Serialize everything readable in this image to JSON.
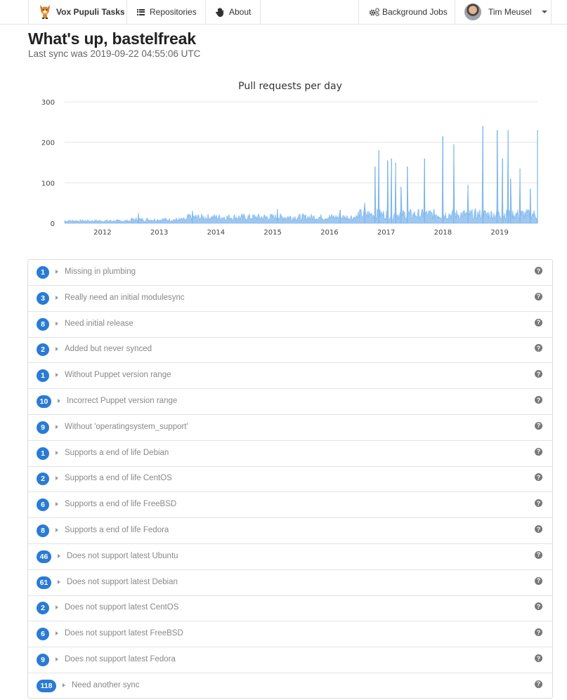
{
  "nav": {
    "brand": "Vox Pupuli Tasks",
    "repositories": "Repositories",
    "about": "About",
    "jobs": "Background Jobs",
    "user": "Tim Meusel"
  },
  "header": {
    "title": "What's up, bastelfreak",
    "last_sync": "Last sync was 2019-09-22 04:55:06 UTC"
  },
  "chart_data": {
    "type": "area",
    "title": "Pull requests per day",
    "xlabel": "",
    "ylabel": "",
    "x_ticks": [
      "2012",
      "2013",
      "2014",
      "2015",
      "2016",
      "2017",
      "2018",
      "2019"
    ],
    "y_ticks": [
      0,
      100,
      200,
      300
    ],
    "ylim": [
      0,
      300
    ],
    "xlim": [
      "2011-05",
      "2019-09"
    ],
    "grid": true,
    "color": "#7cb5ec",
    "note_daily_noise": "daily values mostly 0-40",
    "peaks": [
      {
        "x": "2012-08-20",
        "y": 25
      },
      {
        "x": "2013-08-01",
        "y": 30
      },
      {
        "x": "2015-02-01",
        "y": 35
      },
      {
        "x": "2016-03-10",
        "y": 33
      },
      {
        "x": "2016-08-15",
        "y": 50
      },
      {
        "x": "2016-10-20",
        "y": 140
      },
      {
        "x": "2016-11-15",
        "y": 180
      },
      {
        "x": "2017-01-10",
        "y": 155
      },
      {
        "x": "2017-02-05",
        "y": 160
      },
      {
        "x": "2017-03-01",
        "y": 150
      },
      {
        "x": "2017-04-05",
        "y": 90
      },
      {
        "x": "2017-05-15",
        "y": 140
      },
      {
        "x": "2017-09-05",
        "y": 160
      },
      {
        "x": "2018-01-01",
        "y": 215
      },
      {
        "x": "2018-03-10",
        "y": 195
      },
      {
        "x": "2018-06-10",
        "y": 95
      },
      {
        "x": "2018-09-15",
        "y": 240
      },
      {
        "x": "2018-12-15",
        "y": 230
      },
      {
        "x": "2019-01-20",
        "y": 160
      },
      {
        "x": "2019-02-25",
        "y": 230
      },
      {
        "x": "2019-03-10",
        "y": 110
      },
      {
        "x": "2019-05-10",
        "y": 135
      },
      {
        "x": "2019-07-15",
        "y": 85
      },
      {
        "x": "2019-09-01",
        "y": 230
      }
    ]
  },
  "checks": [
    {
      "count": "1",
      "label": "Missing in plumbing"
    },
    {
      "count": "3",
      "label": "Really need an initial modulesync"
    },
    {
      "count": "8",
      "label": "Need initial release"
    },
    {
      "count": "2",
      "label": "Added but never synced"
    },
    {
      "count": "1",
      "label": "Without Puppet version range"
    },
    {
      "count": "10",
      "label": "Incorrect Puppet version range"
    },
    {
      "count": "9",
      "label": "Without 'operatingsystem_support'"
    },
    {
      "count": "1",
      "label": "Supports a end of life Debian"
    },
    {
      "count": "2",
      "label": "Supports a end of life CentOS"
    },
    {
      "count": "6",
      "label": "Supports a end of life FreeBSD"
    },
    {
      "count": "8",
      "label": "Supports a end of life Fedora"
    },
    {
      "count": "46",
      "label": "Does not support latest Ubuntu"
    },
    {
      "count": "61",
      "label": "Does not support latest Debian"
    },
    {
      "count": "2",
      "label": "Does not support latest CentOS"
    },
    {
      "count": "6",
      "label": "Does not support latest FreeBSD"
    },
    {
      "count": "9",
      "label": "Does not support latest Fedora"
    },
    {
      "count": "118",
      "label": "Need another sync"
    }
  ],
  "help_glyph": "?"
}
